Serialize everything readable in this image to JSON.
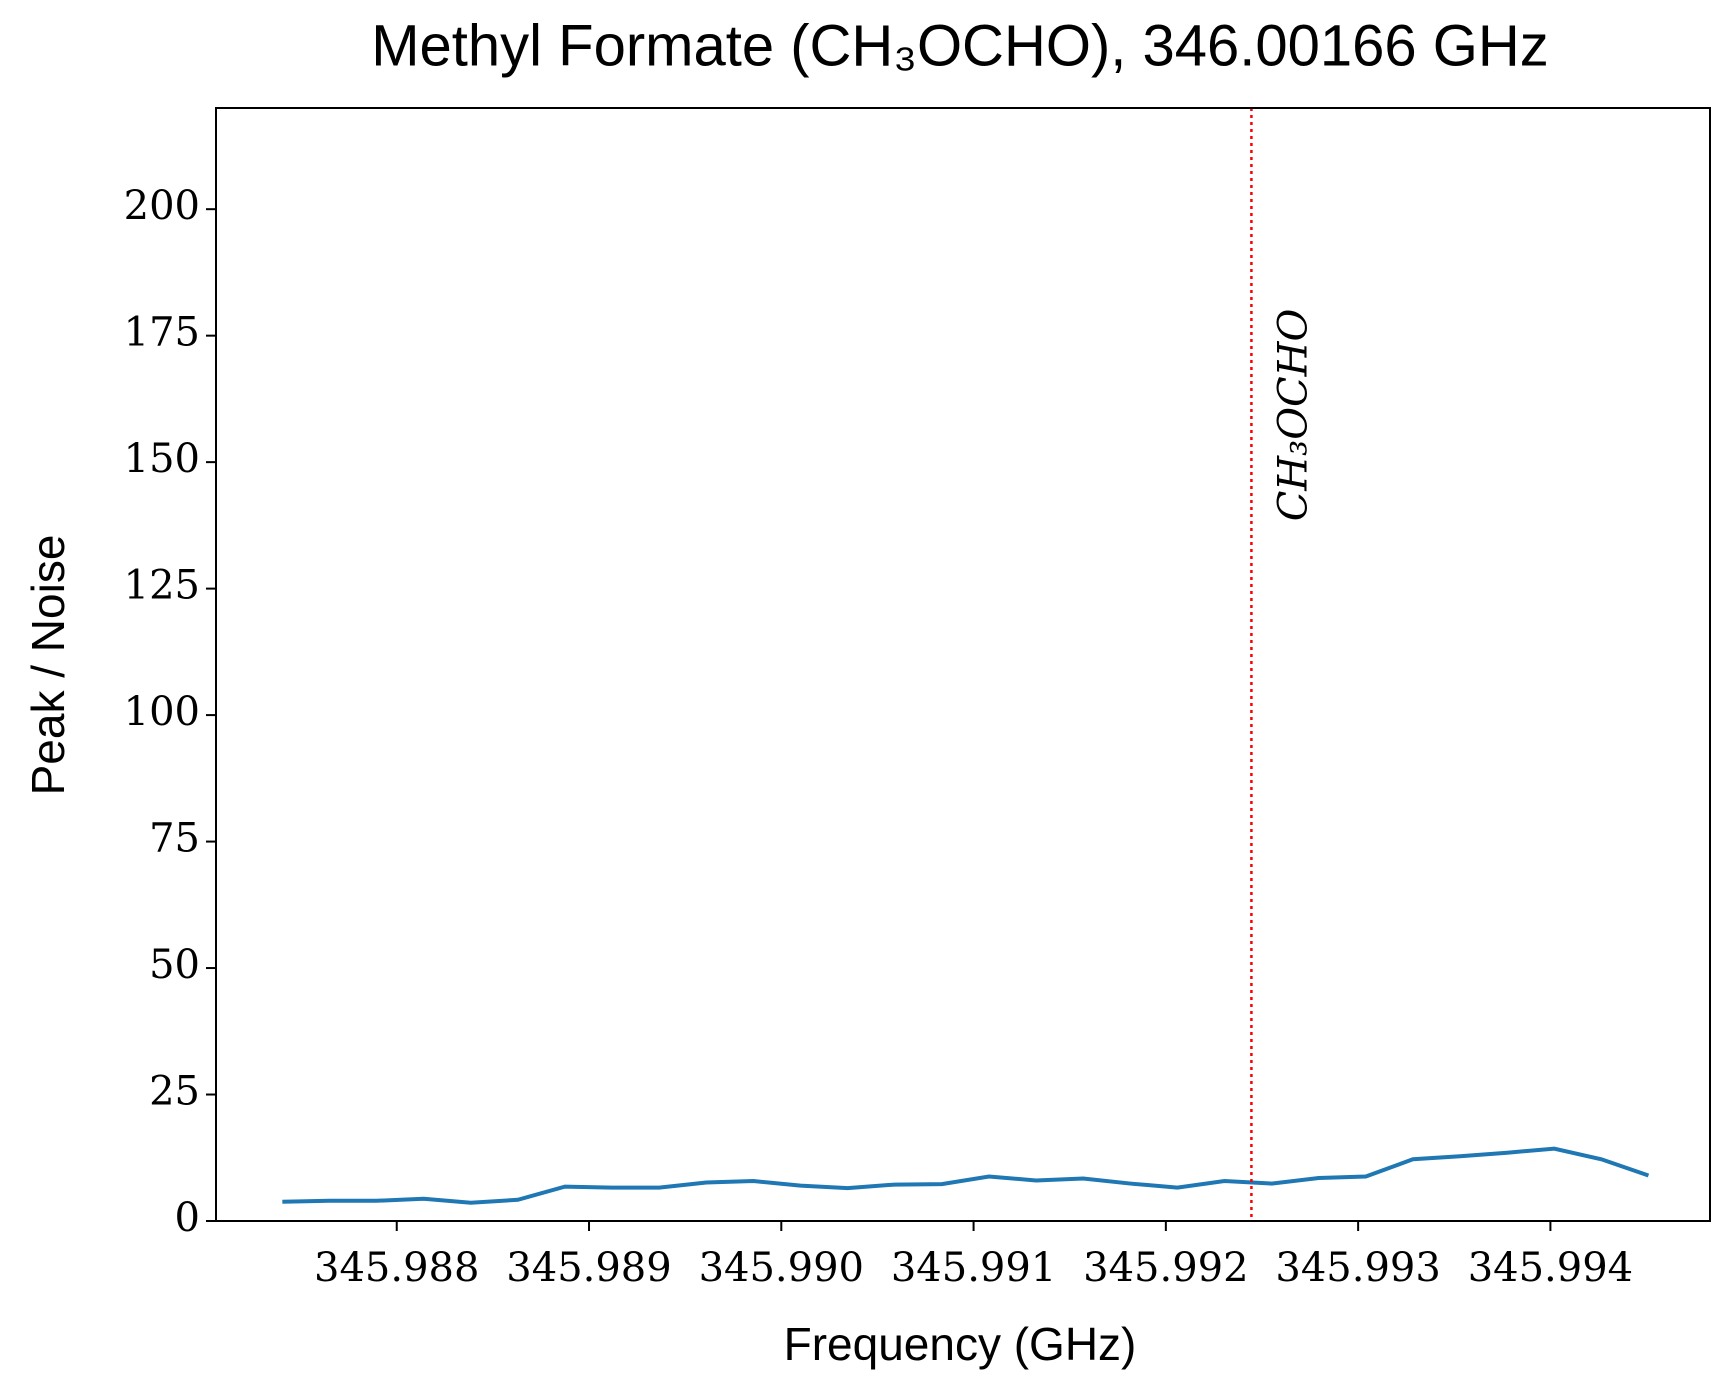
{
  "chart_data": {
    "type": "line",
    "title": "Methyl Formate (CH₃OCHO), 346.00166 GHz",
    "x_label": "Frequency (GHz)",
    "y_label": "Peak / Noise",
    "x": [
      345.987405,
      345.98765,
      345.987895,
      345.98814,
      345.988385,
      345.98863,
      345.988875,
      345.98912,
      345.989365,
      345.98961,
      345.989855,
      345.9901,
      345.990345,
      345.99059,
      345.990835,
      345.99108,
      345.991325,
      345.99157,
      345.991815,
      345.99206,
      345.992305,
      345.99255,
      345.992795,
      345.99304,
      345.993285,
      345.99353,
      345.993775,
      345.99402,
      345.994265,
      345.99451
    ],
    "series": [
      {
        "name": "Peak / Noise",
        "color": "#1f77b4",
        "values": [
          3.8,
          4.0,
          4.0,
          4.4,
          3.6,
          4.2,
          6.8,
          6.6,
          6.6,
          7.6,
          7.9,
          7.0,
          6.5,
          7.2,
          7.3,
          8.8,
          8.0,
          8.4,
          7.4,
          6.6,
          7.9,
          7.4,
          8.5,
          8.8,
          12.2,
          12.8,
          13.5,
          14.3,
          12.2,
          9.0
        ]
      }
    ],
    "vline": {
      "x": 345.992445,
      "label": "CH₃OCHO",
      "color": "#ff0000"
    },
    "xlim": [
      345.98706,
      345.99483
    ],
    "ylim": [
      0,
      220
    ],
    "xticks": [
      345.988,
      345.989,
      {
        "value": 345.99,
        "label": "345.990"
      },
      345.991,
      345.992,
      345.993,
      345.994
    ],
    "yticks": [
      0,
      25,
      50,
      75,
      100,
      125,
      150,
      175,
      200
    ]
  }
}
